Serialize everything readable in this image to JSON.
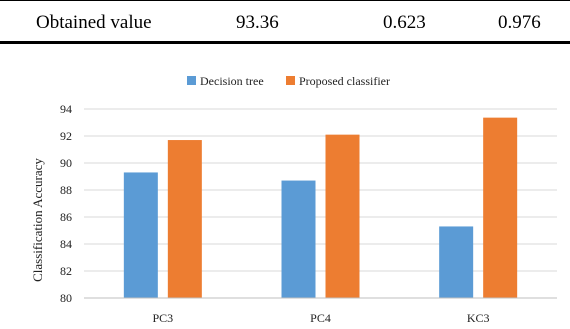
{
  "table": {
    "row": [
      "Obtained value",
      "93.36",
      "0.623",
      "0.976"
    ]
  },
  "chart_data": {
    "type": "bar",
    "title": "",
    "xlabel": "",
    "ylabel": "Classification Accuracy",
    "categories": [
      "PC3",
      "PC4",
      "KC3"
    ],
    "series": [
      {
        "name": "Decision tree",
        "values": [
          89.3,
          88.7,
          85.3
        ],
        "color": "#5b9bd5"
      },
      {
        "name": "Proposed classifier",
        "values": [
          91.7,
          92.1,
          93.36
        ],
        "color": "#ed7d31"
      }
    ],
    "ylim": [
      80,
      94
    ],
    "yticks": [
      "80",
      "82",
      "84",
      "86",
      "88",
      "90",
      "92",
      "94"
    ],
    "grid": true,
    "legend": "top-center"
  }
}
